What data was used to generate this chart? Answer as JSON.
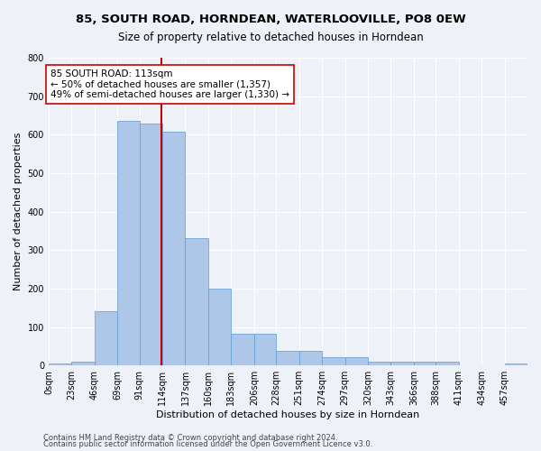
{
  "title1": "85, SOUTH ROAD, HORNDEAN, WATERLOOVILLE, PO8 0EW",
  "title2": "Size of property relative to detached houses in Horndean",
  "xlabel": "Distribution of detached houses by size in Horndean",
  "ylabel": "Number of detached properties",
  "bin_labels": [
    "0sqm",
    "23sqm",
    "46sqm",
    "69sqm",
    "91sqm",
    "114sqm",
    "137sqm",
    "160sqm",
    "183sqm",
    "206sqm",
    "228sqm",
    "251sqm",
    "274sqm",
    "297sqm",
    "320sqm",
    "343sqm",
    "366sqm",
    "388sqm",
    "411sqm",
    "434sqm",
    "457sqm"
  ],
  "bin_edges": [
    0,
    23,
    46,
    69,
    91,
    114,
    137,
    160,
    183,
    206,
    228,
    251,
    274,
    297,
    320,
    343,
    366,
    388,
    411,
    434,
    457,
    480
  ],
  "bar_heights": [
    5,
    10,
    140,
    635,
    630,
    608,
    330,
    200,
    83,
    83,
    38,
    38,
    22,
    22,
    10,
    10,
    10,
    10,
    0,
    0,
    5
  ],
  "bar_color": "#aec6e8",
  "bar_edge_color": "#5b9bd5",
  "property_size": 113,
  "vline_color": "#cc0000",
  "annotation_line1": "85 SOUTH ROAD: 113sqm",
  "annotation_line2": "← 50% of detached houses are smaller (1,357)",
  "annotation_line3": "49% of semi-detached houses are larger (1,330) →",
  "annotation_box_color": "#ffffff",
  "annotation_box_edge": "#cc0000",
  "ylim": [
    0,
    800
  ],
  "yticks": [
    0,
    100,
    200,
    300,
    400,
    500,
    600,
    700,
    800
  ],
  "footer1": "Contains HM Land Registry data © Crown copyright and database right 2024.",
  "footer2": "Contains public sector information licensed under the Open Government Licence v3.0.",
  "bg_color": "#eef2f8",
  "title1_fontsize": 9.5,
  "title2_fontsize": 8.5,
  "axis_label_fontsize": 8,
  "tick_fontsize": 7,
  "footer_fontsize": 6,
  "annotation_fontsize": 7.5
}
